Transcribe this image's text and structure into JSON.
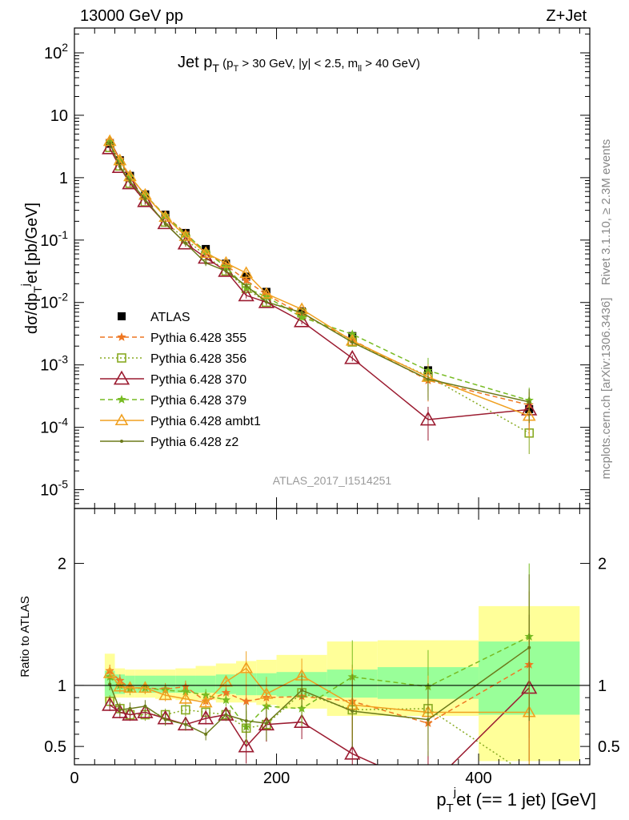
{
  "header": {
    "energy_label": "13000 GeV pp",
    "process_label": "Z+Jet",
    "rivet_label": "Rivet 3.1.10, ≥ 2.3M events",
    "url_label": "mcplots.cern.ch [arXiv:1306.3436]",
    "analysis_label": "ATLAS_2017_I1514251"
  },
  "chart_data": [
    {
      "panel": "main",
      "type": "line",
      "title": "Jet p_T (p_T > 30 GeV, |y| < 2.5, m_ll > 40 GeV)",
      "xlabel": "p_T^j et (== 1 jet) [GeV]",
      "ylabel": "dσ/dp_T^j et [pb/GeV]",
      "xlim": [
        0,
        510
      ],
      "ylim": [
        5e-06,
        250
      ],
      "yscale": "log",
      "y_ticks": [
        "10^-5",
        "10^-4",
        "10^-3",
        "10^-2",
        "10^-1",
        "1",
        "10",
        "10^2"
      ],
      "legend_position": "left",
      "x": [
        35,
        45,
        55,
        70,
        90,
        110,
        130,
        150,
        170,
        190,
        225,
        275,
        350,
        450
      ],
      "series": [
        {
          "name": "ATLAS",
          "marker": "square",
          "color": "#000000",
          "dash": "none",
          "values": [
            3.5,
            1.9,
            1.07,
            0.54,
            0.255,
            0.13,
            0.072,
            0.042,
            0.026,
            0.0148,
            0.0072,
            0.0029,
            0.00082,
            0.000195
          ]
        },
        {
          "name": "Pythia 6.428 355",
          "marker": "star",
          "color": "#ee7722",
          "dash": "dashed",
          "values": [
            3.95,
            1.98,
            1.05,
            0.53,
            0.247,
            0.129,
            0.0627,
            0.0395,
            0.0226,
            0.0133,
            0.0065,
            0.00253,
            0.000564,
            0.000228
          ]
        },
        {
          "name": "Pythia 6.428 356",
          "marker": "open-square",
          "color": "#88aa22",
          "dash": "dotted",
          "values": [
            3.05,
            1.54,
            0.815,
            0.41,
            0.194,
            0.104,
            0.056,
            0.032,
            0.0168,
            0.0101,
            0.0068,
            0.00233,
            0.00066,
            8.1e-05
          ]
        },
        {
          "name": "Pythia 6.428 370",
          "marker": "open-triangle",
          "color": "#9b1b30",
          "dash": "none",
          "values": [
            2.95,
            1.48,
            0.81,
            0.42,
            0.186,
            0.088,
            0.052,
            0.032,
            0.013,
            0.0101,
            0.005,
            0.00128,
            0.000133,
            0.000193
          ]
        },
        {
          "name": "Pythia 6.428 379",
          "marker": "star",
          "color": "#77bb22",
          "dash": "dashed",
          "values": [
            3.75,
            1.9,
            1.04,
            0.53,
            0.245,
            0.124,
            0.066,
            0.037,
            0.0172,
            0.0123,
            0.0058,
            0.0031,
            0.00081,
            0.00027
          ]
        },
        {
          "name": "Pythia 6.428 ambt1",
          "marker": "open-triangle",
          "color": "#f0a020",
          "dash": "none",
          "values": [
            3.85,
            1.89,
            1.05,
            0.53,
            0.235,
            0.116,
            0.062,
            0.043,
            0.0296,
            0.0138,
            0.0078,
            0.00243,
            0.00064,
            0.000152
          ]
        },
        {
          "name": "Pythia 6.428 z2",
          "marker": "dot",
          "color": "#6b7a1a",
          "dash": "none",
          "values": [
            3.55,
            1.52,
            0.87,
            0.45,
            0.183,
            0.089,
            0.043,
            0.032,
            0.0185,
            0.0102,
            0.0069,
            0.0023,
            0.00059,
            0.000255
          ]
        }
      ]
    },
    {
      "panel": "ratio",
      "type": "line",
      "ylabel": "Ratio to ATLAS",
      "xlabel": "p_T^j et (== 1 jet) [GeV]",
      "xlim": [
        0,
        510
      ],
      "ylim": [
        0.35,
        2.45
      ],
      "x_ticks": [
        "0",
        "200",
        "400"
      ],
      "y_ticks": [
        "0.5",
        "1",
        "2"
      ],
      "bins": [
        [
          30,
          40
        ],
        [
          40,
          50
        ],
        [
          50,
          60
        ],
        [
          60,
          80
        ],
        [
          80,
          100
        ],
        [
          100,
          120
        ],
        [
          120,
          140
        ],
        [
          140,
          160
        ],
        [
          160,
          180
        ],
        [
          180,
          200
        ],
        [
          200,
          250
        ],
        [
          250,
          300
        ],
        [
          300,
          400
        ],
        [
          400,
          500
        ]
      ],
      "band_inner": [
        [
          0.91,
          1.12
        ],
        [
          0.93,
          1.09
        ],
        [
          0.94,
          1.08
        ],
        [
          0.94,
          1.08
        ],
        [
          0.94,
          1.08
        ],
        [
          0.94,
          1.08
        ],
        [
          0.94,
          1.08
        ],
        [
          0.93,
          1.09
        ],
        [
          0.92,
          1.1
        ],
        [
          0.92,
          1.1
        ],
        [
          0.91,
          1.11
        ],
        [
          0.9,
          1.13
        ],
        [
          0.89,
          1.15
        ],
        [
          0.76,
          1.36
        ]
      ],
      "band_outer": [
        [
          0.87,
          1.26
        ],
        [
          0.9,
          1.14
        ],
        [
          0.9,
          1.13
        ],
        [
          0.9,
          1.13
        ],
        [
          0.89,
          1.13
        ],
        [
          0.88,
          1.14
        ],
        [
          0.88,
          1.16
        ],
        [
          0.86,
          1.18
        ],
        [
          0.86,
          1.2
        ],
        [
          0.84,
          1.21
        ],
        [
          0.81,
          1.25
        ],
        [
          0.75,
          1.36
        ],
        [
          0.75,
          1.37
        ],
        [
          0.38,
          1.65
        ]
      ],
      "series": [
        {
          "name": "Pythia 6.428 355",
          "values": [
            1.12,
            1.04,
            0.98,
            0.98,
            0.97,
            0.99,
            0.87,
            0.94,
            0.87,
            0.9,
            0.91,
            0.87,
            0.69,
            1.17
          ]
        },
        {
          "name": "Pythia 6.428 356",
          "values": [
            0.87,
            0.81,
            0.76,
            0.76,
            0.76,
            0.8,
            0.78,
            0.76,
            0.65,
            0.68,
            0.94,
            0.8,
            0.81,
            0.26
          ]
        },
        {
          "name": "Pythia 6.428 370",
          "values": [
            0.84,
            0.78,
            0.76,
            0.78,
            0.73,
            0.68,
            0.73,
            0.76,
            0.5,
            0.68,
            0.7,
            0.44,
            0.16,
            0.98
          ]
        },
        {
          "name": "Pythia 6.428 379",
          "values": [
            1.07,
            1.0,
            0.97,
            0.98,
            0.96,
            0.95,
            0.92,
            0.88,
            0.66,
            0.83,
            0.81,
            1.07,
            0.99,
            1.4
          ]
        },
        {
          "name": "Pythia 6.428 ambt1",
          "values": [
            1.1,
            0.99,
            0.98,
            0.98,
            0.92,
            0.89,
            0.86,
            1.03,
            1.14,
            0.93,
            1.08,
            0.84,
            0.78,
            0.78
          ]
        },
        {
          "name": "Pythia 6.428 z2",
          "values": [
            1.01,
            0.8,
            0.81,
            0.83,
            0.72,
            0.68,
            0.6,
            0.76,
            0.71,
            0.69,
            0.96,
            0.79,
            0.72,
            1.31
          ]
        }
      ]
    }
  ]
}
